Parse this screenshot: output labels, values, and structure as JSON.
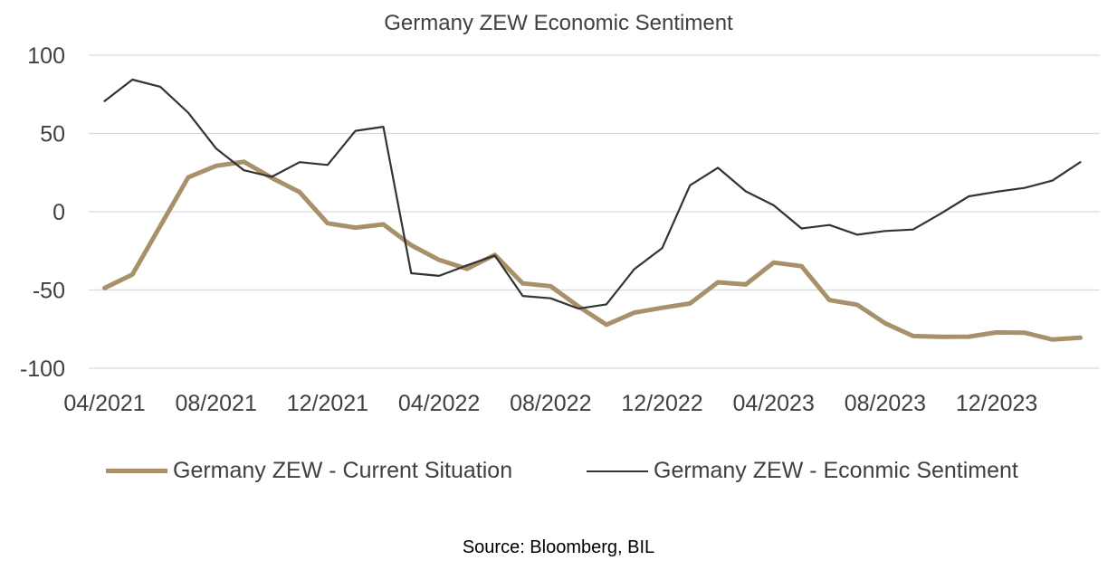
{
  "chart_data": {
    "type": "line",
    "title": "Germany ZEW Economic Sentiment",
    "source": "Source: Bloomberg, BIL",
    "x_tick_labels": [
      "04/2021",
      "08/2021",
      "12/2021",
      "04/2022",
      "08/2022",
      "12/2022",
      "04/2023",
      "08/2023",
      "12/2023"
    ],
    "y_tick_labels": [
      "100",
      "50",
      "0",
      "-50",
      "-100"
    ],
    "y_ticks": [
      100,
      50,
      0,
      -50,
      -100
    ],
    "ylim": [
      -100,
      100
    ],
    "x": [
      "04/2021",
      "05/2021",
      "06/2021",
      "07/2021",
      "08/2021",
      "09/2021",
      "10/2021",
      "11/2021",
      "12/2021",
      "01/2022",
      "02/2022",
      "03/2022",
      "04/2022",
      "05/2022",
      "06/2022",
      "07/2022",
      "08/2022",
      "09/2022",
      "10/2022",
      "11/2022",
      "12/2022",
      "01/2023",
      "02/2023",
      "03/2023",
      "04/2023",
      "05/2023",
      "06/2023",
      "07/2023",
      "08/2023",
      "09/2023",
      "10/2023",
      "11/2023",
      "12/2023",
      "01/2024",
      "02/2024",
      "03/2024"
    ],
    "grid": true,
    "legend_position": "bottom",
    "series": [
      {
        "name": "Germany ZEW - Current Situation",
        "color": "#a8916a",
        "values": [
          -48.8,
          -40.1,
          -9.1,
          21.9,
          29.3,
          31.9,
          21.6,
          12.5,
          -7.4,
          -10.2,
          -8.1,
          -21.4,
          -30.8,
          -36.5,
          -27.6,
          -45.8,
          -47.6,
          -60.5,
          -72.2,
          -64.5,
          -61.4,
          -58.6,
          -45.1,
          -46.5,
          -32.5,
          -34.8,
          -56.5,
          -59.5,
          -71.3,
          -79.4,
          -79.9,
          -79.8,
          -77.1,
          -77.3,
          -81.7,
          -80.5
        ]
      },
      {
        "name": "Germany ZEW - Econmic Sentiment",
        "color": "#333333",
        "values": [
          70.7,
          84.4,
          79.8,
          63.3,
          40.4,
          26.5,
          22.3,
          31.7,
          29.9,
          51.7,
          54.3,
          -39.3,
          -41.0,
          -34.3,
          -28.0,
          -53.8,
          -55.3,
          -61.9,
          -59.2,
          -36.7,
          -23.3,
          16.9,
          28.1,
          13.0,
          4.1,
          -10.7,
          -8.5,
          -14.7,
          -12.3,
          -11.4,
          -1.1,
          9.8,
          12.8,
          15.2,
          19.9,
          31.7
        ]
      }
    ]
  }
}
